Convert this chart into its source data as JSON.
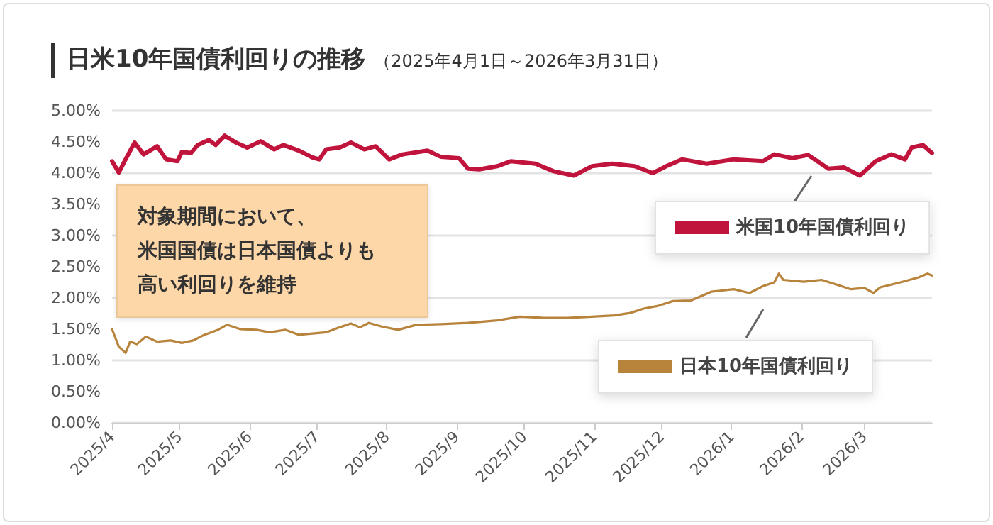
{
  "chart_data": {
    "type": "line",
    "title": "日米10年国債利回りの推移",
    "subtitle": "（2025年4月1日～2026年3月31日）",
    "annotations": [
      "対象期間において、",
      "米国国債は日本国債よりも",
      "高い利回りを維持"
    ],
    "xlim": [
      "2025-04-01",
      "2026-03-31"
    ],
    "xticks": [
      {
        "value": "2025-04-01",
        "label": "2025/4"
      },
      {
        "value": "2025-05-01",
        "label": "2025/5"
      },
      {
        "value": "2025-06-01",
        "label": "2025/6"
      },
      {
        "value": "2025-07-01",
        "label": "2025/7"
      },
      {
        "value": "2025-08-01",
        "label": "2025/8"
      },
      {
        "value": "2025-09-01",
        "label": "2025/9"
      },
      {
        "value": "2025-10-01",
        "label": "2025/10"
      },
      {
        "value": "2025-11-01",
        "label": "2025/11"
      },
      {
        "value": "2025-12-01",
        "label": "2025/12"
      },
      {
        "value": "2026-01-01",
        "label": "2026/1"
      },
      {
        "value": "2026-02-01",
        "label": "2026/2"
      },
      {
        "value": "2026-03-01",
        "label": "2026/3"
      }
    ],
    "ylim": [
      0,
      5
    ],
    "yticks": [
      {
        "value": 0,
        "label": "0.00%"
      },
      {
        "value": 0.5,
        "label": "0.50%"
      },
      {
        "value": 1,
        "label": "1.00%"
      },
      {
        "value": 1.5,
        "label": "1.50%"
      },
      {
        "value": 2,
        "label": "2.00%"
      },
      {
        "value": 2.5,
        "label": "2.50%"
      },
      {
        "value": 3,
        "label": "3.00%"
      },
      {
        "value": 3.5,
        "label": "3.50%"
      },
      {
        "value": 4,
        "label": "4.00%"
      },
      {
        "value": 4.5,
        "label": "4.50%"
      },
      {
        "value": 5,
        "label": "5.00%"
      }
    ],
    "grid": "y",
    "legend": "right",
    "marker": "none",
    "line_style": "solid",
    "series": [
      {
        "name": "米国10年国債利回り",
        "color": "#c0143c",
        "x": [
          "2025-04-01",
          "2025-04-04",
          "2025-04-07",
          "2025-04-11",
          "2025-04-15",
          "2025-04-21",
          "2025-04-25",
          "2025-04-30",
          "2025-05-02",
          "2025-05-06",
          "2025-05-09",
          "2025-05-14",
          "2025-05-17",
          "2025-05-21",
          "2025-05-26",
          "2025-05-31",
          "2025-06-06",
          "2025-06-12",
          "2025-06-16",
          "2025-06-23",
          "2025-06-29",
          "2025-07-02",
          "2025-07-05",
          "2025-07-11",
          "2025-07-16",
          "2025-07-22",
          "2025-07-27",
          "2025-08-02",
          "2025-08-08",
          "2025-08-19",
          "2025-08-25",
          "2025-09-02",
          "2025-09-06",
          "2025-09-11",
          "2025-09-19",
          "2025-09-25",
          "2025-10-06",
          "2025-10-14",
          "2025-10-23",
          "2025-10-31",
          "2025-11-09",
          "2025-11-19",
          "2025-11-27",
          "2025-12-03",
          "2025-12-10",
          "2025-12-21",
          "2026-01-02",
          "2026-01-15",
          "2026-01-20",
          "2026-01-28",
          "2026-02-04",
          "2026-02-13",
          "2026-02-20",
          "2026-02-27",
          "2026-03-06",
          "2026-03-13",
          "2026-03-19",
          "2026-03-22",
          "2026-03-27",
          "2026-03-31"
        ],
        "values": [
          4.19,
          4.01,
          4.22,
          4.49,
          4.3,
          4.43,
          4.22,
          4.19,
          4.34,
          4.32,
          4.45,
          4.53,
          4.45,
          4.6,
          4.49,
          4.41,
          4.51,
          4.38,
          4.45,
          4.36,
          4.25,
          4.22,
          4.38,
          4.41,
          4.49,
          4.38,
          4.43,
          4.22,
          4.3,
          4.36,
          4.26,
          4.24,
          4.07,
          4.06,
          4.11,
          4.19,
          4.15,
          4.03,
          3.96,
          4.11,
          4.15,
          4.11,
          4.0,
          4.11,
          4.22,
          4.15,
          4.22,
          4.19,
          4.3,
          4.24,
          4.29,
          4.07,
          4.09,
          3.96,
          4.19,
          4.3,
          4.22,
          4.41,
          4.45,
          4.32
        ]
      },
      {
        "name": "日本10年国債利回り",
        "color": "#b8843c",
        "x": [
          "2025-04-01",
          "2025-04-04",
          "2025-04-07",
          "2025-04-09",
          "2025-04-12",
          "2025-04-16",
          "2025-04-21",
          "2025-04-27",
          "2025-05-02",
          "2025-05-07",
          "2025-05-12",
          "2025-05-18",
          "2025-05-22",
          "2025-05-28",
          "2025-06-04",
          "2025-06-10",
          "2025-06-17",
          "2025-06-23",
          "2025-06-29",
          "2025-07-05",
          "2025-07-11",
          "2025-07-16",
          "2025-07-20",
          "2025-07-24",
          "2025-07-30",
          "2025-08-06",
          "2025-08-14",
          "2025-08-25",
          "2025-09-06",
          "2025-09-19",
          "2025-09-29",
          "2025-10-10",
          "2025-10-20",
          "2025-10-31",
          "2025-11-10",
          "2025-11-17",
          "2025-11-23",
          "2025-11-29",
          "2025-12-06",
          "2025-12-14",
          "2025-12-23",
          "2026-01-02",
          "2026-01-09",
          "2026-01-15",
          "2026-01-20",
          "2026-01-22",
          "2026-01-24",
          "2026-02-02",
          "2026-02-10",
          "2026-02-17",
          "2026-02-23",
          "2026-03-01",
          "2026-03-05",
          "2026-03-08",
          "2026-03-17",
          "2026-03-21",
          "2026-03-25",
          "2026-03-29",
          "2026-03-31"
        ],
        "values": [
          1.5,
          1.22,
          1.12,
          1.3,
          1.26,
          1.38,
          1.3,
          1.32,
          1.28,
          1.32,
          1.41,
          1.49,
          1.57,
          1.5,
          1.49,
          1.45,
          1.49,
          1.41,
          1.43,
          1.45,
          1.53,
          1.59,
          1.53,
          1.6,
          1.54,
          1.49,
          1.57,
          1.58,
          1.6,
          1.64,
          1.7,
          1.68,
          1.68,
          1.7,
          1.72,
          1.76,
          1.83,
          1.87,
          1.95,
          1.96,
          2.1,
          2.14,
          2.08,
          2.19,
          2.25,
          2.39,
          2.29,
          2.26,
          2.29,
          2.21,
          2.14,
          2.16,
          2.08,
          2.17,
          2.25,
          2.29,
          2.33,
          2.39,
          2.36
        ]
      }
    ]
  }
}
